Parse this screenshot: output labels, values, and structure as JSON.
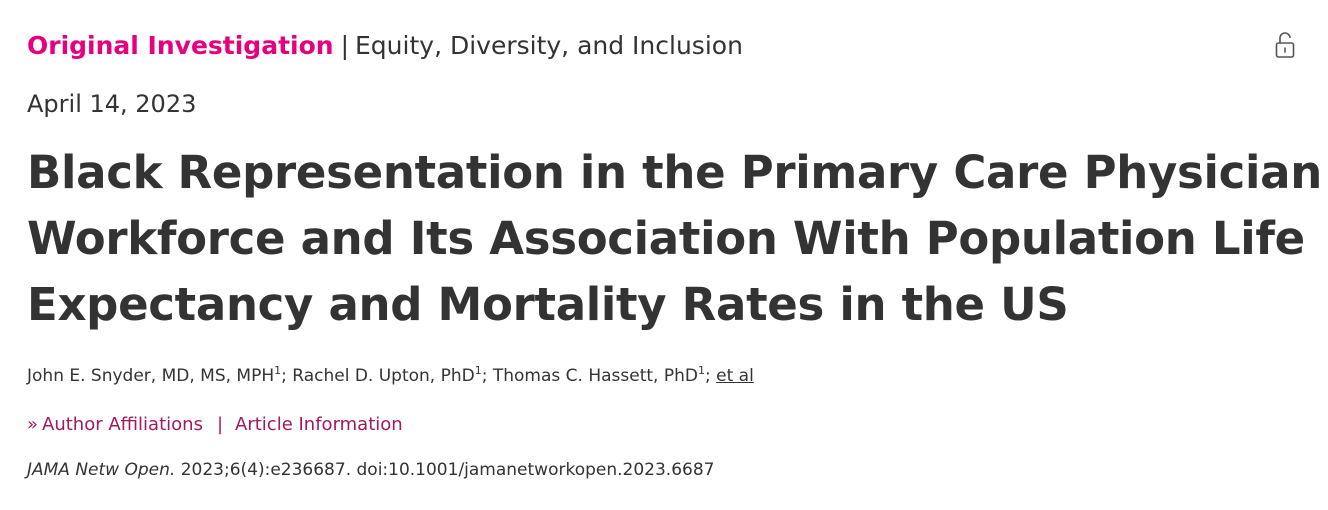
{
  "header": {
    "article_type": "Original Investigation",
    "separator": "|",
    "section": "Equity, Diversity, and Inclusion",
    "lock_icon": "open-lock-icon"
  },
  "date": "April 14, 2023",
  "title_lines": [
    "Black Representation in the Primary Care Physician",
    "Workforce and Its Association With Population Life",
    "Expectancy and Mortality Rates in the US"
  ],
  "authors": [
    {
      "name": "John E. Snyder, MD, MS, MPH",
      "affiliation": "1",
      "sep": "; "
    },
    {
      "name": "Rachel D. Upton, PhD",
      "affiliation": "1",
      "sep": "; "
    },
    {
      "name": "Thomas C. Hassett, PhD",
      "affiliation": "1",
      "sep": "; "
    }
  ],
  "et_al": "et al",
  "links": {
    "chevron_icon": "double-chevron-right-icon",
    "affiliations": "Author Affiliations",
    "separator": "|",
    "article_info": "Article Information"
  },
  "citation": {
    "journal": "JAMA Netw Open.",
    "details": "2023;6(4):e236687. doi:10.1001/jamanetworkopen.2023.6687"
  },
  "colors": {
    "article_type": "#e6007e",
    "link": "#a3195b",
    "text": "#333333"
  }
}
